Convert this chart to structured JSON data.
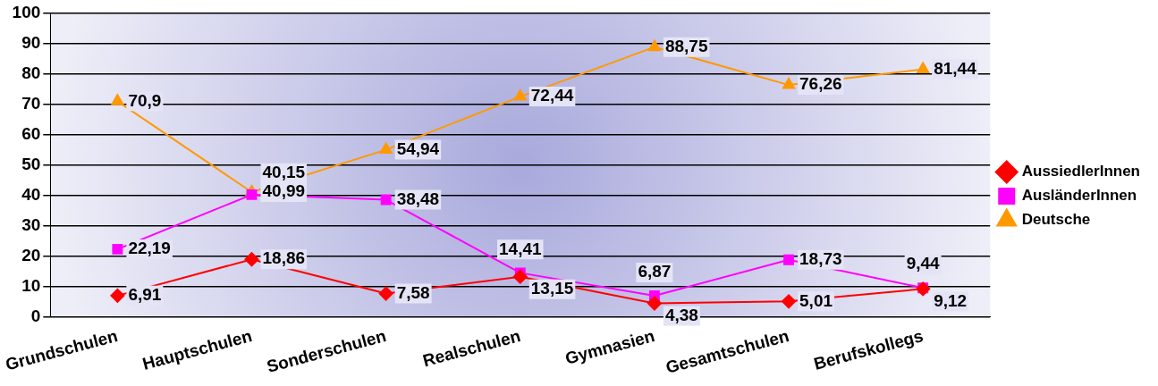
{
  "chart_data": {
    "type": "line",
    "categories": [
      "Grundschulen",
      "Hauptschulen",
      "Sonderschulen",
      "Realschulen",
      "Gymnasien",
      "Gesamtschulen",
      "Berufskollegs"
    ],
    "series": [
      {
        "name": "AussiedlerInnen",
        "color": "#ff0000",
        "marker": "diamond",
        "values": [
          6.91,
          18.86,
          7.58,
          13.15,
          4.38,
          5.01,
          9.12
        ],
        "value_labels": [
          "6,91",
          "18,86",
          "7,58",
          "13,15",
          "4,38",
          "5,01",
          "9,12"
        ]
      },
      {
        "name": "AusländerInnen",
        "color": "#ff00ff",
        "marker": "square",
        "values": [
          22.19,
          40.15,
          38.48,
          14.41,
          6.87,
          18.73,
          9.44
        ],
        "value_labels": [
          "22,19",
          "40,15",
          "38,48",
          "14,41",
          "6,87",
          "18,73",
          "9,44"
        ]
      },
      {
        "name": "Deutsche",
        "color": "#ff9900",
        "marker": "triangle",
        "values": [
          70.9,
          40.99,
          54.94,
          72.44,
          88.75,
          76.26,
          81.44
        ],
        "value_labels": [
          "70,9",
          "40,99",
          "54,94",
          "72,44",
          "88,75",
          "76,26",
          "81,44"
        ]
      }
    ],
    "ylim": [
      0,
      100
    ],
    "yticks": [
      0,
      10,
      20,
      30,
      40,
      50,
      60,
      70,
      80,
      90,
      100
    ],
    "grid": "y",
    "legend": "right"
  }
}
